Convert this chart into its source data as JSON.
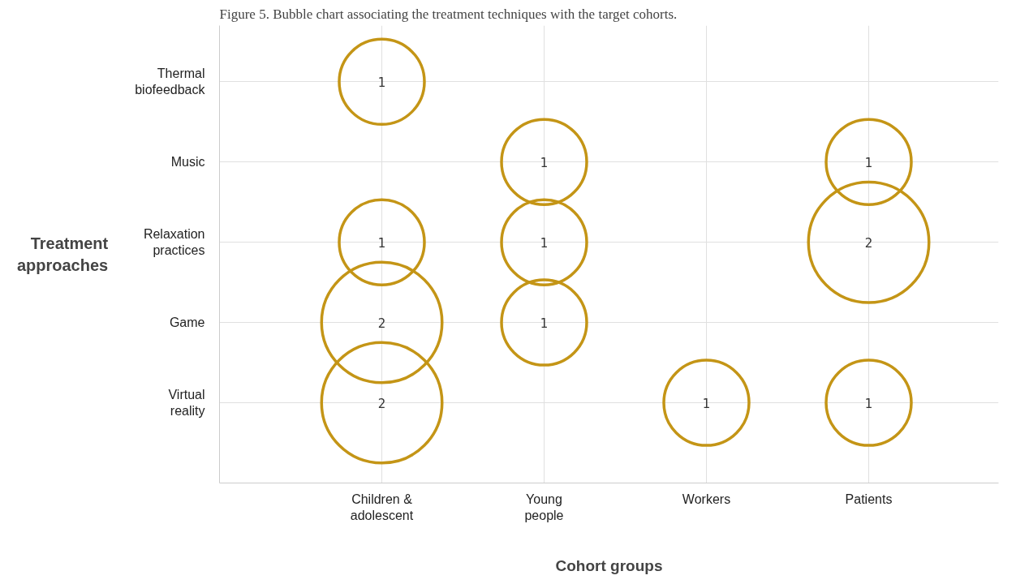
{
  "chart_data": {
    "type": "heatmap",
    "title": "Figure 5. Bubble chart associating the treatment techniques with the target cohorts.",
    "xlabel": "Cohort groups",
    "ylabel": "Treatment approaches",
    "categories": [
      "Children & adolescent",
      "Young people",
      "Workers",
      "Patients"
    ],
    "y_categories": [
      "Thermal biofeedback",
      "Music",
      "Relaxation practices",
      "Game",
      "Virtual reality"
    ],
    "cells": [
      [
        1,
        null,
        null,
        null
      ],
      [
        null,
        1,
        null,
        1
      ],
      [
        1,
        1,
        null,
        2
      ],
      [
        2,
        1,
        null,
        null
      ],
      [
        2,
        null,
        1,
        1
      ]
    ],
    "color": "#c49516",
    "data_labels": true,
    "grid": true
  }
}
